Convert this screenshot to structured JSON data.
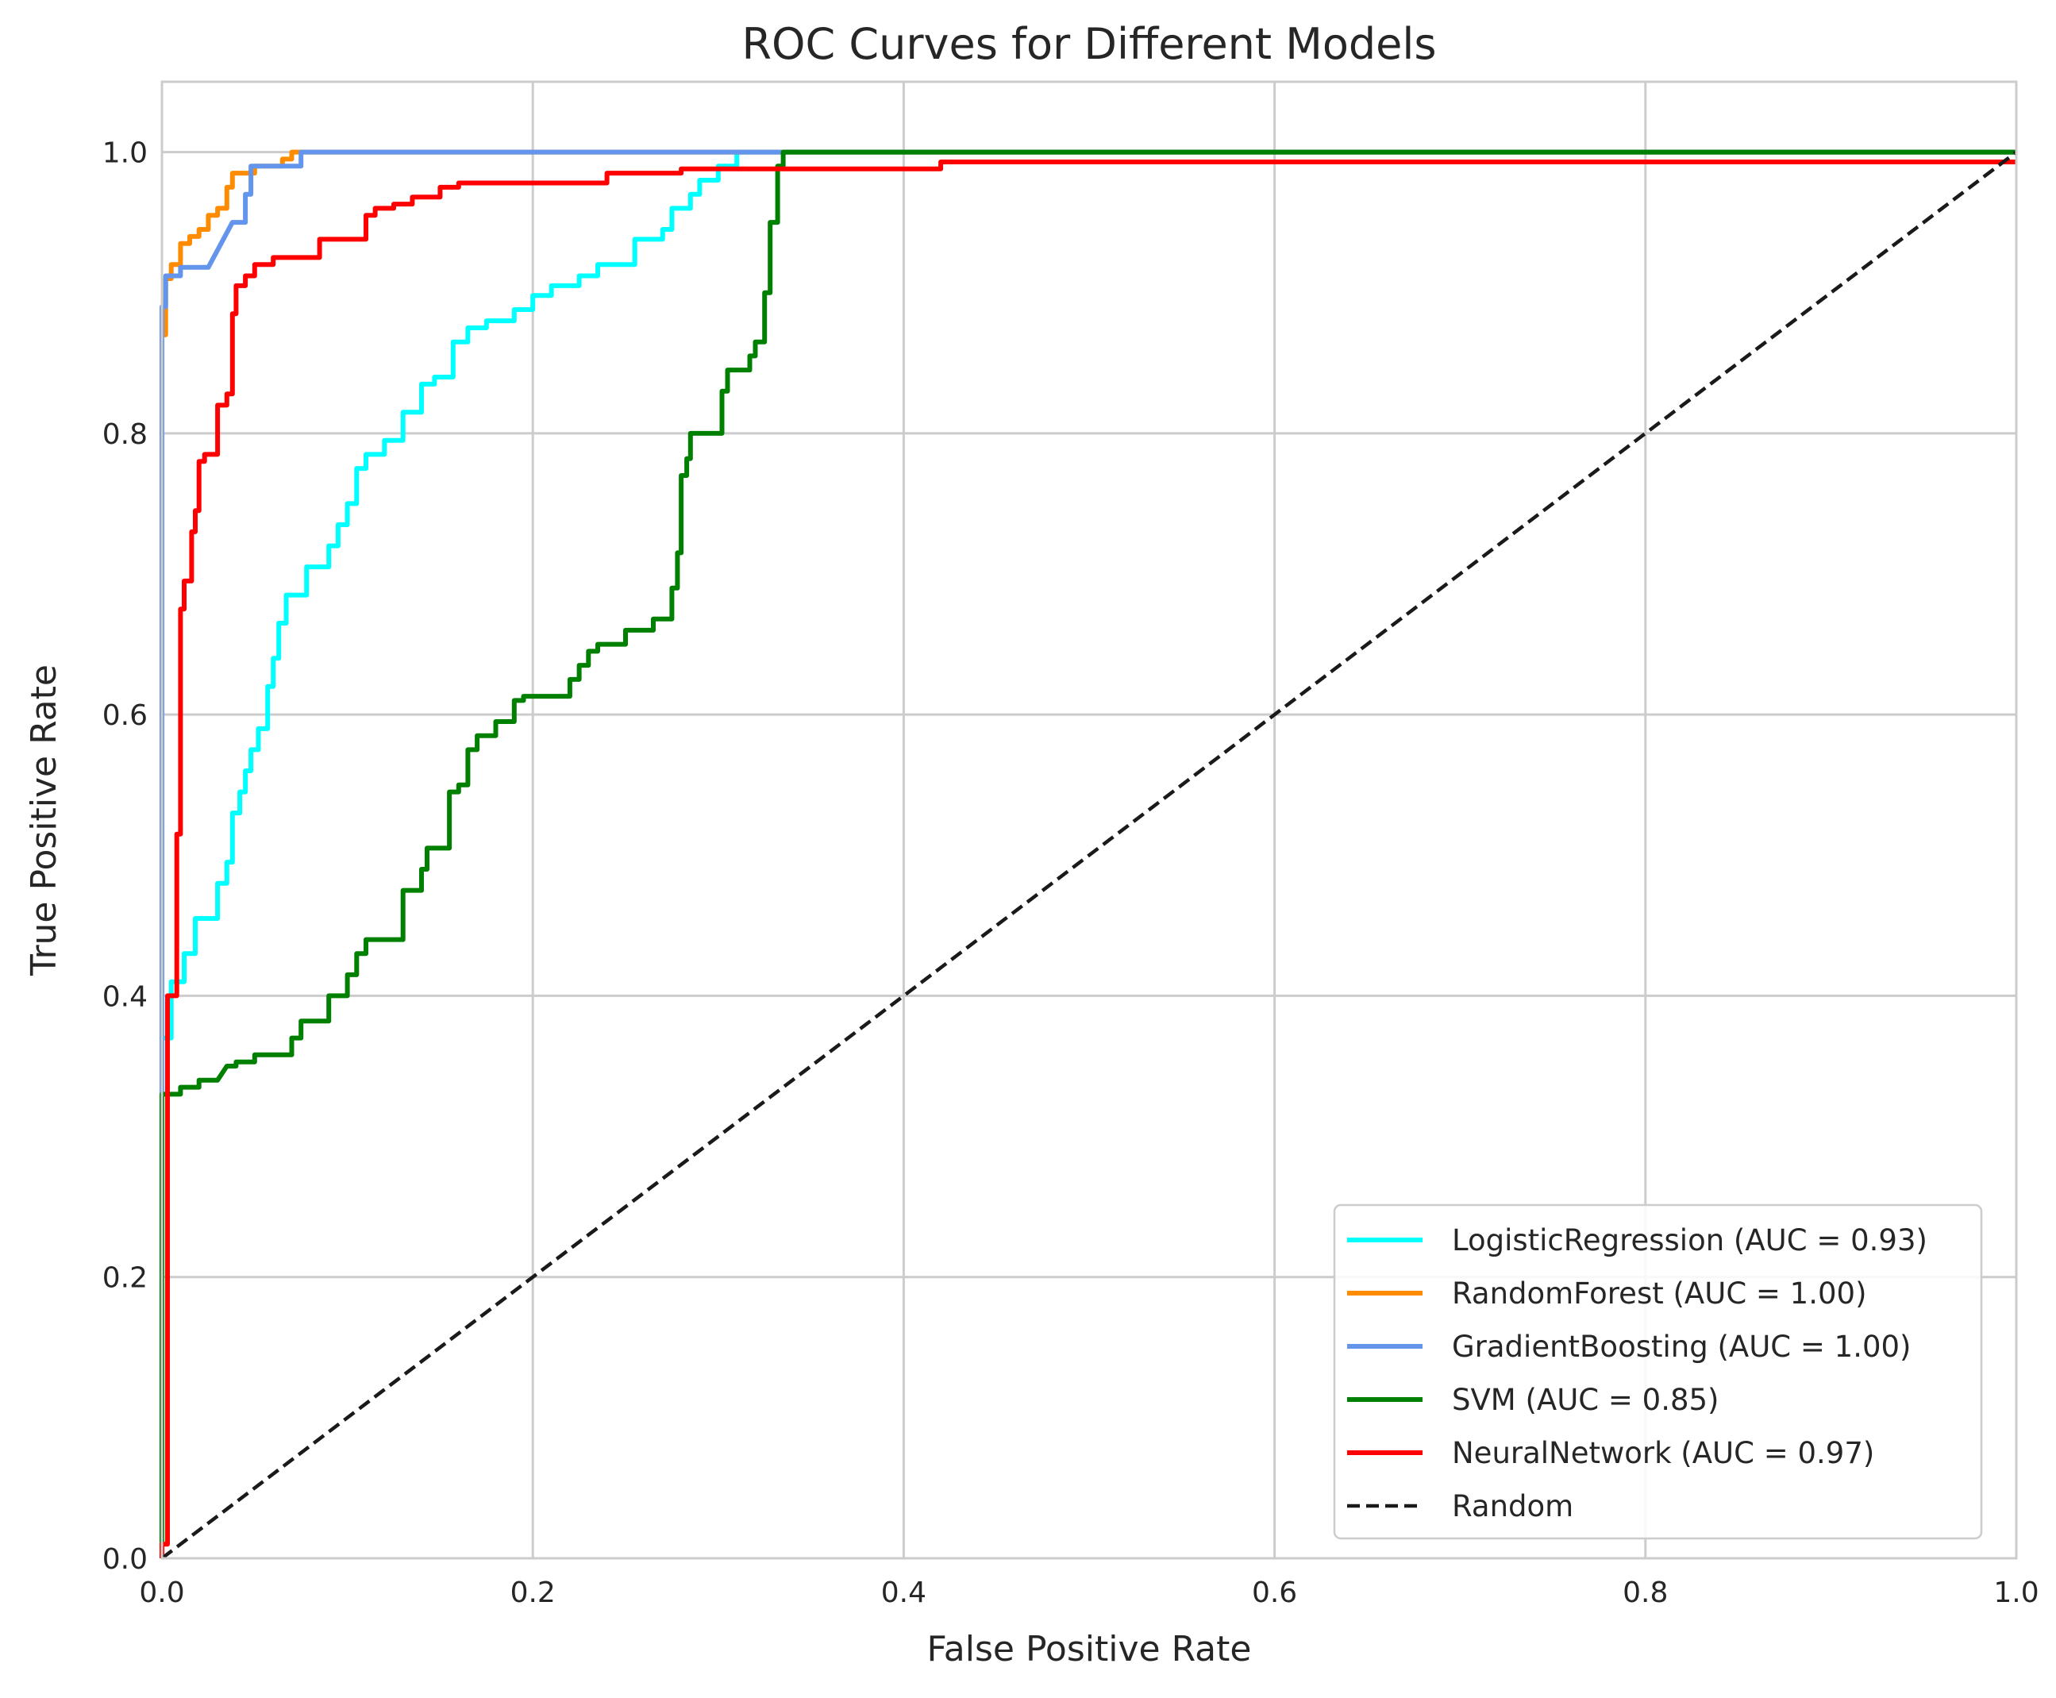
{
  "chart_data": {
    "type": "line",
    "title": "ROC Curves for Different Models",
    "xlabel": "False Positive Rate",
    "ylabel": "True Positive Rate",
    "xlim": [
      0.0,
      1.0
    ],
    "ylim": [
      0.0,
      1.05
    ],
    "grid": true,
    "legend_position": "bottom-right",
    "x_ticks": [
      0.0,
      0.2,
      0.4,
      0.6,
      0.8,
      1.0
    ],
    "y_ticks": [
      0.0,
      0.2,
      0.4,
      0.6,
      0.8,
      1.0
    ],
    "x_tick_labels": [
      "0.0",
      "0.2",
      "0.4",
      "0.6",
      "0.8",
      "1.0"
    ],
    "y_tick_labels": [
      "0.0",
      "0.2",
      "0.4",
      "0.6",
      "0.8",
      "1.0"
    ],
    "series": [
      {
        "name": "LogisticRegression (AUC = 0.93)",
        "color": "#00ffff",
        "dash": "solid",
        "points": [
          [
            0,
            0
          ],
          [
            0,
            0.37
          ],
          [
            0.005,
            0.37
          ],
          [
            0.005,
            0.41
          ],
          [
            0.012,
            0.41
          ],
          [
            0.012,
            0.43
          ],
          [
            0.018,
            0.43
          ],
          [
            0.018,
            0.455
          ],
          [
            0.03,
            0.455
          ],
          [
            0.03,
            0.48
          ],
          [
            0.035,
            0.48
          ],
          [
            0.035,
            0.495
          ],
          [
            0.038,
            0.495
          ],
          [
            0.038,
            0.53
          ],
          [
            0.042,
            0.53
          ],
          [
            0.042,
            0.545
          ],
          [
            0.045,
            0.545
          ],
          [
            0.045,
            0.56
          ],
          [
            0.048,
            0.56
          ],
          [
            0.048,
            0.575
          ],
          [
            0.052,
            0.575
          ],
          [
            0.052,
            0.59
          ],
          [
            0.057,
            0.59
          ],
          [
            0.057,
            0.62
          ],
          [
            0.06,
            0.62
          ],
          [
            0.06,
            0.64
          ],
          [
            0.063,
            0.64
          ],
          [
            0.063,
            0.665
          ],
          [
            0.067,
            0.665
          ],
          [
            0.067,
            0.685
          ],
          [
            0.078,
            0.685
          ],
          [
            0.078,
            0.705
          ],
          [
            0.09,
            0.705
          ],
          [
            0.09,
            0.72
          ],
          [
            0.095,
            0.72
          ],
          [
            0.095,
            0.735
          ],
          [
            0.1,
            0.735
          ],
          [
            0.1,
            0.75
          ],
          [
            0.105,
            0.75
          ],
          [
            0.105,
            0.775
          ],
          [
            0.11,
            0.775
          ],
          [
            0.11,
            0.785
          ],
          [
            0.12,
            0.785
          ],
          [
            0.12,
            0.795
          ],
          [
            0.13,
            0.795
          ],
          [
            0.13,
            0.815
          ],
          [
            0.14,
            0.815
          ],
          [
            0.14,
            0.835
          ],
          [
            0.147,
            0.835
          ],
          [
            0.147,
            0.84
          ],
          [
            0.157,
            0.84
          ],
          [
            0.157,
            0.865
          ],
          [
            0.165,
            0.865
          ],
          [
            0.165,
            0.875
          ],
          [
            0.175,
            0.875
          ],
          [
            0.175,
            0.88
          ],
          [
            0.19,
            0.88
          ],
          [
            0.19,
            0.888
          ],
          [
            0.2,
            0.888
          ],
          [
            0.2,
            0.898
          ],
          [
            0.21,
            0.898
          ],
          [
            0.21,
            0.905
          ],
          [
            0.225,
            0.905
          ],
          [
            0.225,
            0.912
          ],
          [
            0.235,
            0.912
          ],
          [
            0.235,
            0.92
          ],
          [
            0.255,
            0.92
          ],
          [
            0.255,
            0.938
          ],
          [
            0.27,
            0.938
          ],
          [
            0.27,
            0.945
          ],
          [
            0.275,
            0.945
          ],
          [
            0.275,
            0.96
          ],
          [
            0.285,
            0.96
          ],
          [
            0.285,
            0.97
          ],
          [
            0.29,
            0.97
          ],
          [
            0.29,
            0.98
          ],
          [
            0.3,
            0.98
          ],
          [
            0.3,
            0.99
          ],
          [
            0.31,
            0.99
          ],
          [
            0.31,
            1.0
          ],
          [
            1.0,
            1.0
          ]
        ]
      },
      {
        "name": "RandomForest (AUC = 1.00)",
        "color": "#ff8c00",
        "dash": "solid",
        "points": [
          [
            0,
            0
          ],
          [
            0,
            0.87
          ],
          [
            0.002,
            0.87
          ],
          [
            0.002,
            0.91
          ],
          [
            0.005,
            0.91
          ],
          [
            0.005,
            0.92
          ],
          [
            0.01,
            0.92
          ],
          [
            0.01,
            0.935
          ],
          [
            0.015,
            0.935
          ],
          [
            0.015,
            0.94
          ],
          [
            0.02,
            0.94
          ],
          [
            0.02,
            0.945
          ],
          [
            0.025,
            0.945
          ],
          [
            0.025,
            0.955
          ],
          [
            0.03,
            0.955
          ],
          [
            0.03,
            0.96
          ],
          [
            0.035,
            0.96
          ],
          [
            0.035,
            0.975
          ],
          [
            0.038,
            0.975
          ],
          [
            0.038,
            0.985
          ],
          [
            0.05,
            0.985
          ],
          [
            0.05,
            0.99
          ],
          [
            0.065,
            0.99
          ],
          [
            0.065,
            0.995
          ],
          [
            0.07,
            0.995
          ],
          [
            0.07,
            1.0
          ],
          [
            1.0,
            1.0
          ]
        ]
      },
      {
        "name": "GradientBoosting (AUC = 1.00)",
        "color": "#6495ed",
        "dash": "solid",
        "points": [
          [
            0,
            0
          ],
          [
            0,
            0.89
          ],
          [
            0.002,
            0.89
          ],
          [
            0.002,
            0.912
          ],
          [
            0.01,
            0.912
          ],
          [
            0.01,
            0.918
          ],
          [
            0.025,
            0.918
          ],
          [
            0.038,
            0.95
          ],
          [
            0.045,
            0.95
          ],
          [
            0.045,
            0.97
          ],
          [
            0.048,
            0.97
          ],
          [
            0.048,
            0.99
          ],
          [
            0.075,
            0.99
          ],
          [
            0.075,
            1.0
          ],
          [
            1.0,
            1.0
          ]
        ]
      },
      {
        "name": "SVM (AUC = 0.85)",
        "color": "#008000",
        "dash": "solid",
        "points": [
          [
            0,
            0
          ],
          [
            0,
            0.33
          ],
          [
            0.01,
            0.33
          ],
          [
            0.01,
            0.335
          ],
          [
            0.02,
            0.335
          ],
          [
            0.02,
            0.34
          ],
          [
            0.03,
            0.34
          ],
          [
            0.035,
            0.35
          ],
          [
            0.04,
            0.35
          ],
          [
            0.04,
            0.353
          ],
          [
            0.05,
            0.353
          ],
          [
            0.05,
            0.358
          ],
          [
            0.07,
            0.358
          ],
          [
            0.07,
            0.37
          ],
          [
            0.075,
            0.37
          ],
          [
            0.075,
            0.382
          ],
          [
            0.09,
            0.382
          ],
          [
            0.09,
            0.4
          ],
          [
            0.1,
            0.4
          ],
          [
            0.1,
            0.415
          ],
          [
            0.105,
            0.415
          ],
          [
            0.105,
            0.43
          ],
          [
            0.11,
            0.43
          ],
          [
            0.11,
            0.44
          ],
          [
            0.13,
            0.44
          ],
          [
            0.13,
            0.475
          ],
          [
            0.14,
            0.475
          ],
          [
            0.14,
            0.49
          ],
          [
            0.143,
            0.49
          ],
          [
            0.143,
            0.505
          ],
          [
            0.155,
            0.505
          ],
          [
            0.155,
            0.545
          ],
          [
            0.16,
            0.545
          ],
          [
            0.16,
            0.55
          ],
          [
            0.165,
            0.55
          ],
          [
            0.165,
            0.575
          ],
          [
            0.17,
            0.575
          ],
          [
            0.17,
            0.585
          ],
          [
            0.18,
            0.585
          ],
          [
            0.18,
            0.595
          ],
          [
            0.19,
            0.595
          ],
          [
            0.19,
            0.61
          ],
          [
            0.195,
            0.61
          ],
          [
            0.195,
            0.613
          ],
          [
            0.22,
            0.613
          ],
          [
            0.22,
            0.625
          ],
          [
            0.225,
            0.625
          ],
          [
            0.225,
            0.635
          ],
          [
            0.23,
            0.635
          ],
          [
            0.23,
            0.645
          ],
          [
            0.235,
            0.645
          ],
          [
            0.235,
            0.65
          ],
          [
            0.25,
            0.65
          ],
          [
            0.25,
            0.66
          ],
          [
            0.265,
            0.66
          ],
          [
            0.265,
            0.668
          ],
          [
            0.275,
            0.668
          ],
          [
            0.275,
            0.69
          ],
          [
            0.278,
            0.69
          ],
          [
            0.278,
            0.715
          ],
          [
            0.28,
            0.715
          ],
          [
            0.28,
            0.77
          ],
          [
            0.283,
            0.77
          ],
          [
            0.283,
            0.782
          ],
          [
            0.285,
            0.782
          ],
          [
            0.285,
            0.8
          ],
          [
            0.302,
            0.8
          ],
          [
            0.302,
            0.83
          ],
          [
            0.305,
            0.83
          ],
          [
            0.305,
            0.845
          ],
          [
            0.317,
            0.845
          ],
          [
            0.317,
            0.855
          ],
          [
            0.32,
            0.855
          ],
          [
            0.32,
            0.865
          ],
          [
            0.325,
            0.865
          ],
          [
            0.325,
            0.9
          ],
          [
            0.328,
            0.9
          ],
          [
            0.328,
            0.95
          ],
          [
            0.332,
            0.95
          ],
          [
            0.332,
            0.99
          ],
          [
            0.335,
            0.99
          ],
          [
            0.335,
            1.0
          ],
          [
            1.0,
            1.0
          ]
        ]
      },
      {
        "name": "NeuralNetwork (AUC = 0.97)",
        "color": "#ff0000",
        "dash": "solid",
        "points": [
          [
            0,
            0
          ],
          [
            0,
            0.01
          ],
          [
            0.003,
            0.01
          ],
          [
            0.003,
            0.4
          ],
          [
            0.008,
            0.4
          ],
          [
            0.008,
            0.515
          ],
          [
            0.01,
            0.515
          ],
          [
            0.01,
            0.675
          ],
          [
            0.012,
            0.675
          ],
          [
            0.012,
            0.695
          ],
          [
            0.016,
            0.695
          ],
          [
            0.016,
            0.73
          ],
          [
            0.018,
            0.73
          ],
          [
            0.018,
            0.745
          ],
          [
            0.02,
            0.745
          ],
          [
            0.02,
            0.78
          ],
          [
            0.023,
            0.78
          ],
          [
            0.023,
            0.785
          ],
          [
            0.03,
            0.785
          ],
          [
            0.03,
            0.82
          ],
          [
            0.035,
            0.82
          ],
          [
            0.035,
            0.828
          ],
          [
            0.038,
            0.828
          ],
          [
            0.038,
            0.885
          ],
          [
            0.04,
            0.885
          ],
          [
            0.04,
            0.905
          ],
          [
            0.045,
            0.905
          ],
          [
            0.045,
            0.912
          ],
          [
            0.05,
            0.912
          ],
          [
            0.05,
            0.92
          ],
          [
            0.06,
            0.92
          ],
          [
            0.06,
            0.925
          ],
          [
            0.085,
            0.925
          ],
          [
            0.085,
            0.938
          ],
          [
            0.11,
            0.938
          ],
          [
            0.11,
            0.955
          ],
          [
            0.115,
            0.955
          ],
          [
            0.115,
            0.96
          ],
          [
            0.125,
            0.96
          ],
          [
            0.125,
            0.963
          ],
          [
            0.135,
            0.963
          ],
          [
            0.135,
            0.968
          ],
          [
            0.15,
            0.968
          ],
          [
            0.15,
            0.975
          ],
          [
            0.16,
            0.975
          ],
          [
            0.16,
            0.978
          ],
          [
            0.24,
            0.978
          ],
          [
            0.24,
            0.985
          ],
          [
            0.28,
            0.985
          ],
          [
            0.28,
            0.988
          ],
          [
            0.42,
            0.988
          ],
          [
            0.42,
            0.993
          ],
          [
            1.0,
            0.993
          ]
        ]
      },
      {
        "name": "Random",
        "color": "#1a1a1a",
        "dash": "dashed",
        "points": [
          [
            0,
            0
          ],
          [
            1.0,
            1.0
          ]
        ]
      }
    ]
  }
}
